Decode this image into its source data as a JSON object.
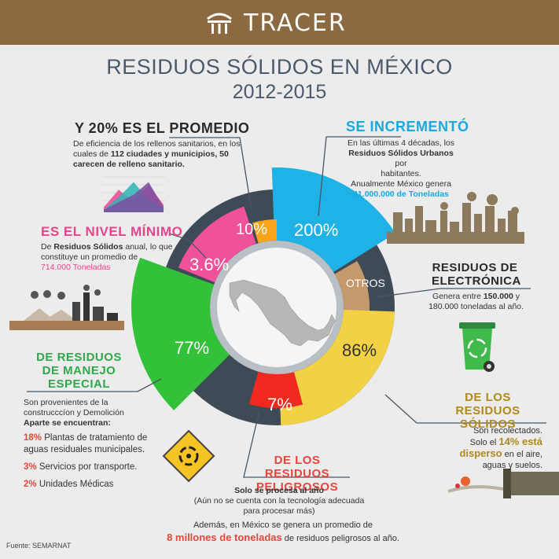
{
  "header": {
    "brand": "TRACER"
  },
  "title": {
    "line1": "RESIDUOS SÓLIDOS EN MÉXICO",
    "line2": "2012-2015"
  },
  "chart_data": [
    {
      "type": "pie",
      "slices": [
        {
          "label": "200%",
          "value": 200,
          "color": "#1eb2e6"
        },
        {
          "label": "OTROS",
          "value": null,
          "color": "#c49a6c"
        },
        {
          "label": "86%",
          "value": 86,
          "color": "#f2d244"
        },
        {
          "label": "7%",
          "value": 7,
          "color": "#f02a1f"
        },
        {
          "label": "77%",
          "value": 77,
          "color": "#33c13a"
        },
        {
          "label": "3.6%",
          "value": 3.6,
          "color": "#f0519b"
        },
        {
          "label": "10%",
          "value": 10,
          "color": "#f9a51a"
        }
      ]
    },
    {
      "type": "area",
      "series": [
        {
          "values": [
            2,
            9,
            4,
            11,
            3
          ]
        },
        {
          "values": [
            1,
            6,
            12,
            5,
            2
          ]
        },
        {
          "values": [
            1,
            4,
            7,
            12,
            2
          ]
        }
      ]
    }
  ],
  "s20": {
    "heading": "Y 20% ES EL PROMEDIO",
    "line1": "De eficiencia de los rellenos sanitarios, en los",
    "line2a": "cuales de ",
    "line2b": "112 ciudades y municipios, 50",
    "line3": "carecen de relleno sanitario."
  },
  "sinc": {
    "heading": "SE INCREMENTÓ",
    "line1": "En las últimas 4 décadas, los",
    "line2": "Residuos Sólidos Urbanos",
    "line2b": " por",
    "line3": "habitantes.",
    "line4": "Anualmente México genera",
    "line5": "41.000.000 de Toneladas"
  },
  "snivel": {
    "heading": "ES EL NIVEL MÍNIMO",
    "line1a": "De ",
    "line1b": "Residuos Sólidos",
    "line1c": " anual, lo que",
    "line2": "constituye un promedio de",
    "line3": "714.000 Toneladas"
  },
  "selec": {
    "heading1": "RESIDUOS DE",
    "heading2": "ELECTRÓNICA",
    "line1a": "Genera entre ",
    "line1b": "150.000",
    "line1c": " y",
    "line2": "180.000 toneladas al año."
  },
  "sesp": {
    "heading1": "DE RESIDUOS",
    "heading2": "DE MANEJO",
    "heading3": "ESPECIAL",
    "line1": "Son provenientes  de la",
    "line2": "construcccíon y Demolición",
    "line3": "Aparte se encuentran:",
    "item1a": "18%",
    "item1b": " Plantas de tratamiento de",
    "item1c": "aguas residuales municipales.",
    "item2a": "3%",
    "item2b": " Servicios por transporte.",
    "item3a": "2%",
    "item3b": " Unidades Médicas"
  },
  "ssol": {
    "heading1": "DE LOS RESIDUOS",
    "heading2": "SÓLIDOS",
    "line1": "Son recolectados.",
    "line2a": "Solo el ",
    "line2b": "14% está",
    "line3a": "disperso",
    "line3b": " en el aire,",
    "line4": "aguas y suelos."
  },
  "speli": {
    "heading1": "DE LOS RESIDUOS",
    "heading2": "PELIGROSOS",
    "line1": "Solo se procesa al año",
    "line2": "(Aún no se cuenta con la tecnología adecuada",
    "line3": "para procesar más)",
    "line4": "Además, en México se genera un promedio de",
    "line5a": "8 millones de toneladas",
    "line5b": "  de residuos peligrosos al año."
  },
  "footer": {
    "source": "Fuente: SEMARNAT"
  }
}
